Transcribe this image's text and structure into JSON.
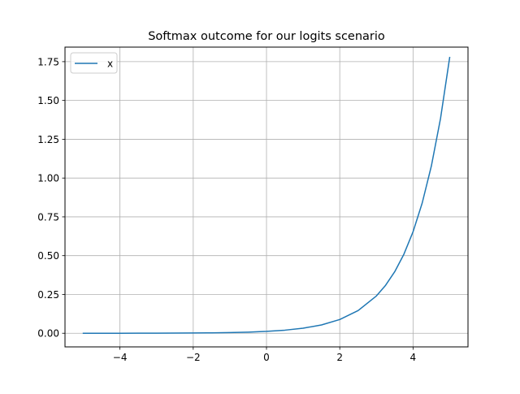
{
  "chart_data": {
    "type": "line",
    "title": "Softmax outcome for our logits scenario",
    "xlabel": "",
    "ylabel": "",
    "xlim": [
      -5.5,
      5.5
    ],
    "ylim": [
      -0.0878,
      1.8437
    ],
    "x_ticks": [
      -4,
      -2,
      0,
      2,
      4
    ],
    "x_tick_labels": [
      "−4",
      "−2",
      "0",
      "2",
      "4"
    ],
    "y_ticks": [
      0.0,
      0.25,
      0.5,
      0.75,
      1.0,
      1.25,
      1.5,
      1.75
    ],
    "y_tick_labels": [
      "0.00",
      "0.25",
      "0.50",
      "0.75",
      "1.00",
      "1.25",
      "1.50",
      "1.75"
    ],
    "grid": true,
    "legend": {
      "placement": "top-left",
      "entries": [
        "x"
      ]
    },
    "series": [
      {
        "name": "x",
        "color": "#1f77b4",
        "x": [
          -5.0,
          -4.5,
          -4.0,
          -3.5,
          -3.0,
          -2.5,
          -2.0,
          -1.5,
          -1.0,
          -0.5,
          0.0,
          0.5,
          1.0,
          1.5,
          2.0,
          2.5,
          3.0,
          3.25,
          3.5,
          3.75,
          4.0,
          4.25,
          4.5,
          4.75,
          5.0
        ],
        "y": [
          0.0001,
          0.0001,
          0.0002,
          0.0004,
          0.0006,
          0.001,
          0.0016,
          0.0027,
          0.0044,
          0.0073,
          0.012,
          0.0198,
          0.0326,
          0.0537,
          0.0885,
          0.1459,
          0.2405,
          0.3088,
          0.3965,
          0.5091,
          0.6537,
          0.8393,
          1.0777,
          1.3838,
          1.7768
        ]
      }
    ]
  }
}
